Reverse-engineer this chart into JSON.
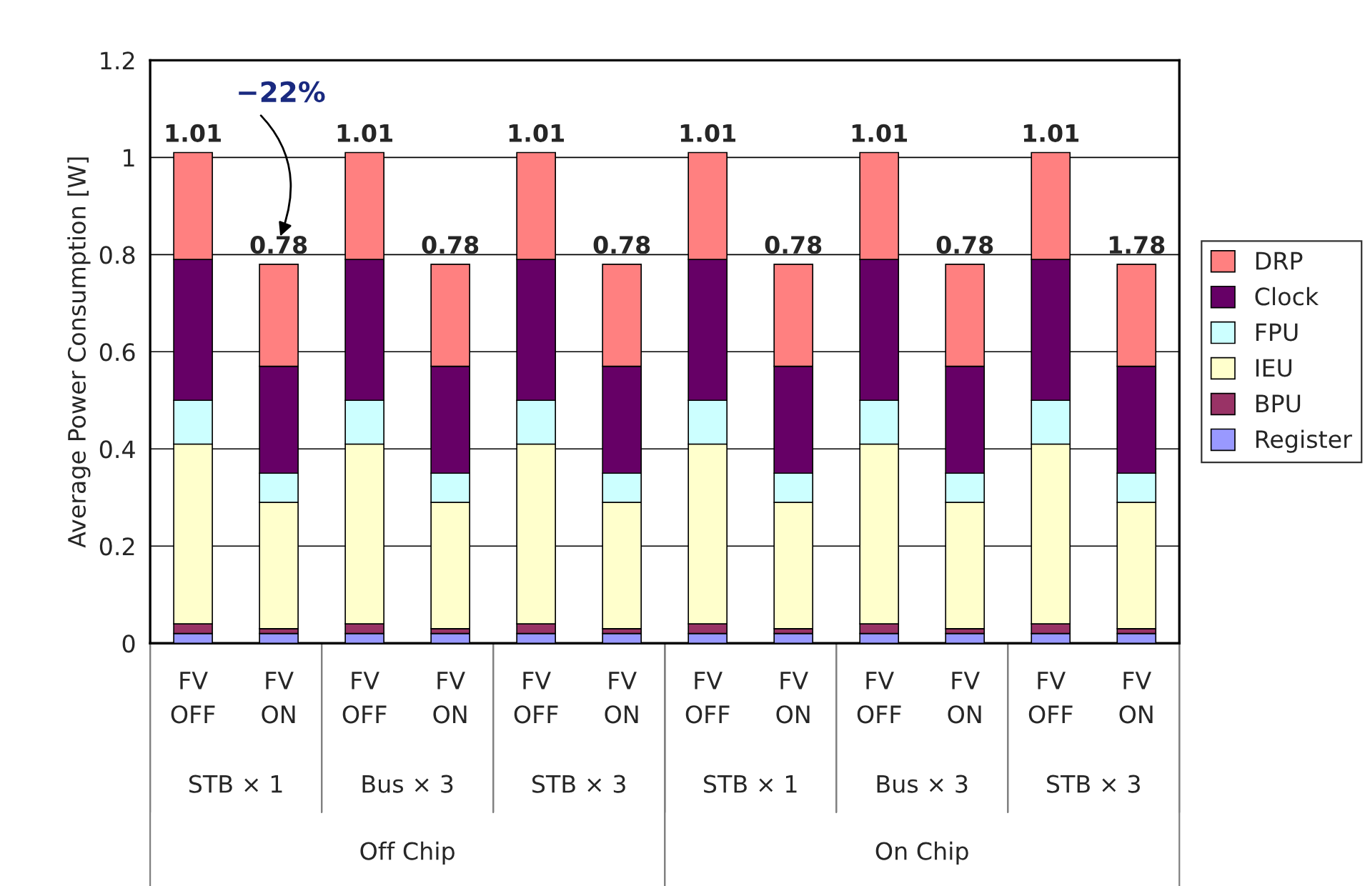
{
  "chart_data": {
    "type": "bar",
    "stacked": true,
    "ylabel": "Average Power Consumption [W]",
    "categories": [
      "FV\nOFF",
      "FV\nON",
      "FV\nOFF",
      "FV\nON",
      "FV\nOFF",
      "FV\nON",
      "FV\nOFF",
      "FV\nON",
      "FV\nOFF",
      "FV\nON",
      "FV\nOFF",
      "FV\nON"
    ],
    "series": [
      {
        "name": "Register",
        "color": "#9999ff",
        "values": [
          0.02,
          0.02,
          0.02,
          0.02,
          0.02,
          0.02,
          0.02,
          0.02,
          0.02,
          0.02,
          0.02,
          0.02
        ]
      },
      {
        "name": "BPU",
        "color": "#993366",
        "values": [
          0.02,
          0.01,
          0.02,
          0.01,
          0.02,
          0.01,
          0.02,
          0.01,
          0.02,
          0.01,
          0.02,
          0.01
        ]
      },
      {
        "name": "IEU",
        "color": "#ffffcc",
        "values": [
          0.37,
          0.26,
          0.37,
          0.26,
          0.37,
          0.26,
          0.37,
          0.26,
          0.37,
          0.26,
          0.37,
          0.26
        ]
      },
      {
        "name": "FPU",
        "color": "#ccffff",
        "values": [
          0.09,
          0.06,
          0.09,
          0.06,
          0.09,
          0.06,
          0.09,
          0.06,
          0.09,
          0.06,
          0.09,
          0.06
        ]
      },
      {
        "name": "Clock",
        "color": "#660066",
        "values": [
          0.29,
          0.22,
          0.29,
          0.22,
          0.29,
          0.22,
          0.29,
          0.22,
          0.29,
          0.22,
          0.29,
          0.22
        ]
      },
      {
        "name": "DRP",
        "color": "#ff8080",
        "values": [
          0.22,
          0.21,
          0.22,
          0.21,
          0.22,
          0.21,
          0.22,
          0.21,
          0.22,
          0.21,
          0.22,
          0.21
        ]
      }
    ],
    "totals": [
      "1.01",
      "0.78",
      "1.01",
      "0.78",
      "1.01",
      "0.78",
      "1.01",
      "0.78",
      "1.01",
      "0.78",
      "1.01",
      null
    ],
    "ylim": [
      0,
      1.2
    ],
    "yticks": [
      0,
      0.2,
      0.4,
      0.6,
      0.8,
      1,
      1.2
    ],
    "grid": "y",
    "legend": "right",
    "annotations": [
      "STB × 1",
      "Bus × 3",
      "STB × 3",
      "STB × 1",
      "Bus × 3",
      "STB × 3",
      "Off Chip",
      "On Chip",
      "−22%",
      "1.78"
    ]
  }
}
